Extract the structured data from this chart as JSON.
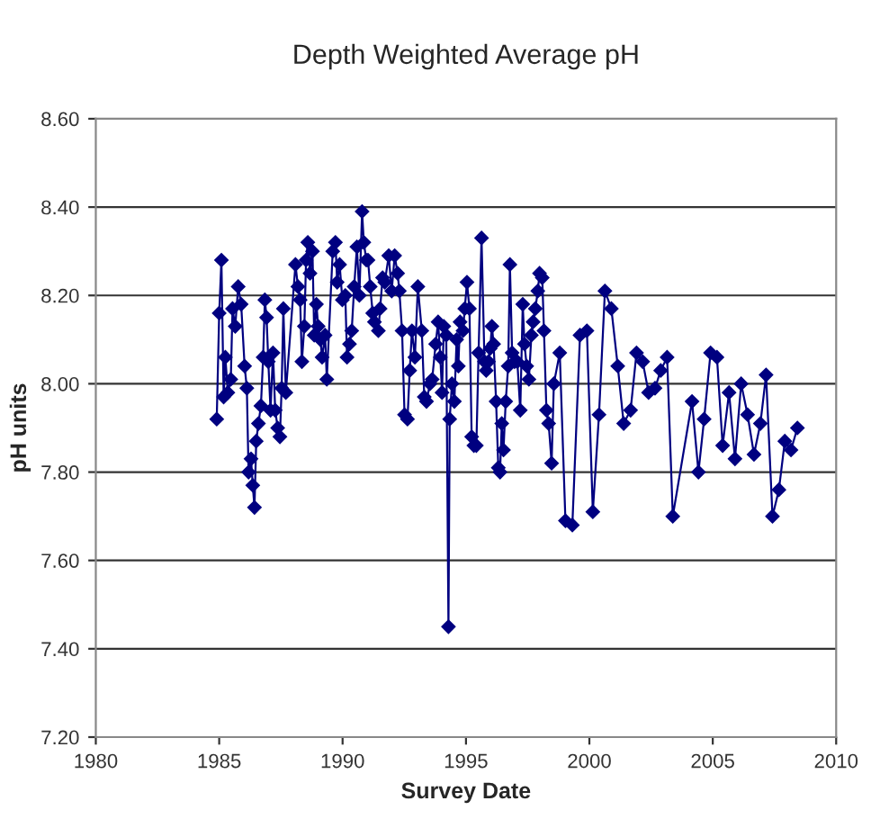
{
  "chart_data": {
    "type": "line",
    "title": "Depth Weighted Average pH",
    "xlabel": "Survey Date",
    "ylabel": "pH units",
    "x": [
      1984.9,
      1985.0,
      1985.09,
      1985.18,
      1985.25,
      1985.35,
      1985.47,
      1985.54,
      1985.65,
      1985.77,
      1985.89,
      1986.03,
      1986.12,
      1986.19,
      1986.29,
      1986.36,
      1986.43,
      1986.5,
      1986.59,
      1986.69,
      1986.78,
      1986.85,
      1986.92,
      1986.99,
      1987.08,
      1987.18,
      1987.27,
      1987.37,
      1987.46,
      1987.53,
      1987.6,
      1987.7,
      1988.09,
      1988.19,
      1988.28,
      1988.35,
      1988.45,
      1988.52,
      1988.59,
      1988.68,
      1988.78,
      1988.85,
      1988.94,
      1989.01,
      1989.1,
      1989.17,
      1989.29,
      1989.36,
      1989.6,
      1989.71,
      1989.78,
      1989.88,
      1989.99,
      1990.11,
      1990.18,
      1990.28,
      1990.37,
      1990.47,
      1990.58,
      1990.68,
      1990.79,
      1990.86,
      1990.96,
      1991.03,
      1991.12,
      1991.22,
      1991.29,
      1991.45,
      1991.52,
      1991.62,
      1991.71,
      1991.87,
      1991.99,
      1992.11,
      1992.23,
      1992.3,
      1992.41,
      1992.51,
      1992.63,
      1992.72,
      1992.81,
      1992.93,
      1993.05,
      1993.21,
      1993.31,
      1993.4,
      1993.54,
      1993.63,
      1993.77,
      1993.87,
      1993.96,
      1994.03,
      1994.1,
      1994.2,
      1994.29,
      1994.34,
      1994.43,
      1994.53,
      1994.62,
      1994.69,
      1994.76,
      1994.88,
      1994.95,
      1995.04,
      1995.14,
      1995.23,
      1995.32,
      1995.42,
      1995.51,
      1995.63,
      1995.75,
      1995.82,
      1995.91,
      1995.98,
      1996.05,
      1996.12,
      1996.22,
      1996.31,
      1996.38,
      1996.45,
      1996.52,
      1996.61,
      1996.71,
      1996.78,
      1996.87,
      1996.97,
      1997.08,
      1997.2,
      1997.3,
      1997.37,
      1997.46,
      1997.55,
      1997.65,
      1997.72,
      1997.81,
      1997.91,
      1997.98,
      1998.09,
      1998.16,
      1998.26,
      1998.35,
      1998.47,
      1998.56,
      1998.8,
      1999.03,
      1999.31,
      1999.62,
      1999.9,
      2000.14,
      2000.39,
      2000.63,
      2000.89,
      2001.15,
      2001.39,
      2001.67,
      2001.91,
      2002.16,
      2002.4,
      2002.66,
      2002.89,
      2003.15,
      2003.38,
      2004.16,
      2004.42,
      2004.65,
      2004.91,
      2005.17,
      2005.4,
      2005.66,
      2005.9,
      2006.15,
      2006.41,
      2006.67,
      2006.93,
      2007.16,
      2007.42,
      2007.68,
      2007.92,
      2008.17,
      2008.43
    ],
    "series": [
      {
        "color": "#000080",
        "values": [
          7.92,
          8.16,
          8.28,
          7.97,
          8.06,
          7.98,
          8.01,
          8.17,
          8.13,
          8.22,
          8.18,
          8.04,
          7.99,
          7.8,
          7.83,
          7.77,
          7.72,
          7.87,
          7.91,
          7.95,
          8.06,
          8.19,
          8.15,
          8.05,
          7.94,
          8.07,
          7.94,
          7.9,
          7.88,
          7.99,
          8.17,
          7.98,
          8.27,
          8.22,
          8.19,
          8.05,
          8.13,
          8.28,
          8.32,
          8.25,
          8.3,
          8.11,
          8.18,
          8.13,
          8.1,
          8.06,
          8.11,
          8.01,
          8.3,
          8.32,
          8.23,
          8.27,
          8.19,
          8.2,
          8.06,
          8.09,
          8.12,
          8.22,
          8.31,
          8.2,
          8.39,
          8.32,
          8.28,
          8.28,
          8.22,
          8.16,
          8.14,
          8.12,
          8.17,
          8.24,
          8.23,
          8.29,
          8.21,
          8.29,
          8.25,
          8.21,
          8.12,
          7.93,
          7.92,
          8.03,
          8.12,
          8.06,
          8.22,
          8.12,
          7.97,
          7.96,
          8.0,
          8.01,
          8.09,
          8.14,
          8.06,
          7.98,
          8.13,
          8.11,
          7.45,
          7.92,
          8.0,
          7.96,
          8.1,
          8.04,
          8.14,
          8.12,
          8.17,
          8.23,
          8.17,
          7.88,
          7.86,
          7.86,
          8.07,
          8.33,
          8.05,
          8.03,
          8.05,
          8.08,
          8.13,
          8.09,
          7.96,
          7.81,
          7.8,
          7.91,
          7.85,
          7.96,
          8.04,
          8.27,
          8.07,
          8.05,
          8.05,
          7.94,
          8.18,
          8.09,
          8.04,
          8.01,
          8.11,
          8.14,
          8.17,
          8.21,
          8.25,
          8.24,
          8.12,
          7.94,
          7.91,
          7.82,
          8.0,
          8.07,
          7.69,
          7.68,
          8.11,
          8.12,
          7.71,
          7.93,
          8.21,
          8.17,
          8.04,
          7.91,
          7.94,
          8.07,
          8.05,
          7.98,
          7.99,
          8.03,
          8.06,
          7.7,
          7.96,
          7.8,
          7.92,
          8.07,
          8.06,
          7.86,
          7.98,
          7.83,
          8.0,
          7.93,
          7.84,
          7.91,
          8.02,
          7.7,
          7.76,
          7.87,
          7.85,
          7.9
        ]
      }
    ],
    "xlim": [
      1980,
      2010
    ],
    "xticks": [
      1980,
      1985,
      1990,
      1995,
      2000,
      2005,
      2010
    ],
    "ylim": [
      7.2,
      8.6
    ],
    "yticks": [
      {
        "value": 7.2,
        "label": "7.20"
      },
      {
        "value": 7.4,
        "label": "7.40"
      },
      {
        "value": 7.6,
        "label": "7.60"
      },
      {
        "value": 7.8,
        "label": "7.80"
      },
      {
        "value": 8.0,
        "label": "8.00"
      },
      {
        "value": 8.2,
        "label": "8.20"
      },
      {
        "value": 8.4,
        "label": "8.40"
      },
      {
        "value": 8.6,
        "label": "8.60"
      }
    ],
    "grid": "y",
    "marker": "diamond",
    "line_style": "solid"
  }
}
